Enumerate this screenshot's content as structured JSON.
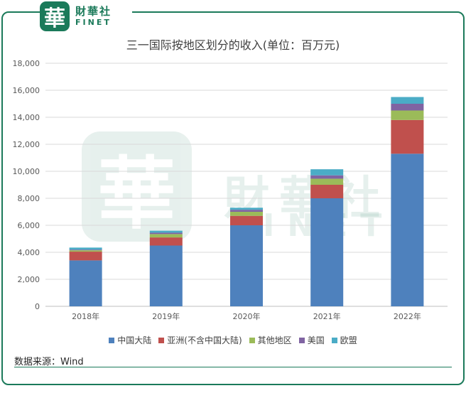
{
  "logo": {
    "seal_char": "華",
    "name_cn": "財華社",
    "name_en": "FINET"
  },
  "source": "数据来源：Wind",
  "chart_data": {
    "type": "bar",
    "stacked": true,
    "title": "三一国际按地区划分的收入(单位：百万元)",
    "categories": [
      "2018年",
      "2019年",
      "2020年",
      "2021年",
      "2022年"
    ],
    "ylim": [
      0,
      18000
    ],
    "yticks": [
      "0",
      "2,000",
      "4,000",
      "6,000",
      "8,000",
      "10,000",
      "12,000",
      "14,000",
      "16,000",
      "18,000"
    ],
    "grid": true,
    "legend_position": "bottom",
    "series": [
      {
        "name": "中国大陆",
        "color": "#4e81bd",
        "values": [
          3400,
          4500,
          6000,
          8000,
          11300
        ]
      },
      {
        "name": "亚洲(不含中国大陆)",
        "color": "#c0504d",
        "values": [
          650,
          600,
          700,
          1000,
          2500
        ]
      },
      {
        "name": "其他地区",
        "color": "#9bbb59",
        "values": [
          100,
          250,
          300,
          450,
          700
        ]
      },
      {
        "name": "美国",
        "color": "#8064a2",
        "values": [
          50,
          100,
          150,
          250,
          500
        ]
      },
      {
        "name": "欧盟",
        "color": "#4bacc6",
        "values": [
          150,
          150,
          150,
          450,
          500
        ]
      }
    ]
  }
}
